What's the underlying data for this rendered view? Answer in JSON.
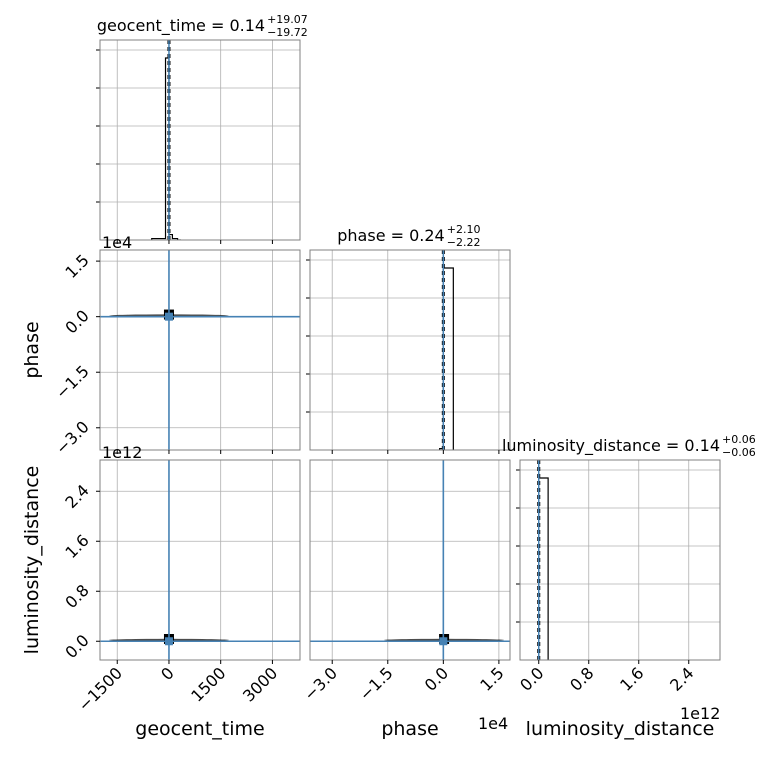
{
  "chart_data": {
    "type": "corner",
    "parameters": [
      "geocent_time",
      "phase",
      "luminosity_distance"
    ],
    "exponent_labels": [
      "1e4",
      "1e12",
      "1e4",
      "1e12"
    ],
    "titles": [
      {
        "param": "geocent_time",
        "text": "geocent_time = 0.14",
        "sup": "+19.07",
        "sub": "−19.72"
      },
      {
        "param": "phase",
        "text": "phase = 0.24",
        "sup": "+2.10",
        "sub": "−2.22"
      },
      {
        "param": "luminosity_distance",
        "text": "luminosity_distance = 0.14",
        "sup": "+0.06",
        "sub": "−0.06"
      }
    ],
    "truths": {
      "geocent_time": 0,
      "phase": 0,
      "luminosity_distance": 0
    },
    "truth_color": "#4682b4",
    "axes": {
      "geocent_time": {
        "range": [
          -2000,
          3800
        ],
        "ticks": [
          -1500,
          0,
          1500,
          3000
        ],
        "tick_labels": [
          "−1500",
          "0",
          "1500",
          "3000"
        ]
      },
      "phase": {
        "range": [
          -36000,
          18000
        ],
        "ticks": [
          -30000,
          -15000,
          0,
          15000
        ],
        "tick_labels": [
          "−3.0",
          "−1.5",
          "0.0",
          "1.5"
        ]
      },
      "luminosity_distance": {
        "range": [
          -300000000000,
          2900000000000
        ],
        "ticks": [
          0,
          800000000000,
          1600000000000,
          2400000000000
        ],
        "tick_labels": [
          "0.0",
          "0.8",
          "1.6",
          "2.4"
        ]
      }
    },
    "histograms": [
      {
        "param": "geocent_time",
        "edges": [
          -500,
          -100,
          0,
          100,
          250,
          350
        ],
        "heights": [
          0.008,
          1.0,
          0.03,
          0.008,
          0.0
        ]
      },
      {
        "param": "phase",
        "edges": [
          -1000,
          0,
          2700
        ],
        "heights": [
          0.008,
          1.0
        ]
      },
      {
        "param": "luminosity_distance",
        "edges": [
          0,
          150000000000
        ],
        "heights": [
          1.0
        ]
      }
    ],
    "scatter_blobs": [
      {
        "x": "geocent_time",
        "y": "phase",
        "x_val": 0,
        "y_val": 300
      },
      {
        "x": "geocent_time",
        "y": "luminosity_distance",
        "x_val": 0,
        "y_val": 20000000000
      },
      {
        "x": "phase",
        "y": "luminosity_distance",
        "x_val": 200,
        "y_val": 20000000000
      }
    ],
    "grid": true
  }
}
